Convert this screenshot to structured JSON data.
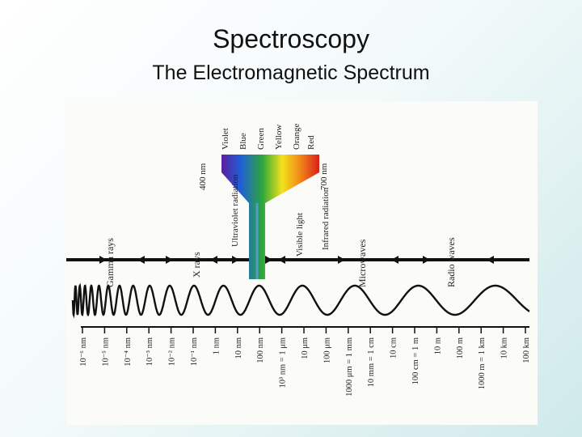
{
  "slide": {
    "title": "Spectroscopy",
    "subtitle": "The Electromagnetic Spectrum"
  },
  "diagram": {
    "region_labels": [
      "Gamma rays",
      "X rays",
      "Ultraviolet radiation",
      "Visible light",
      "Infrared radiation",
      "Microwaves",
      "Radio waves"
    ],
    "visible_band": {
      "start_label": "400 nm",
      "end_label": "700 nm",
      "colors": [
        "Violet",
        "Blue",
        "Green",
        "Yellow",
        "Orange",
        "Red"
      ]
    },
    "scale_labels": [
      "10⁻⁶ nm",
      "10⁻⁵ nm",
      "10⁻⁴ nm",
      "10⁻³ nm",
      "10⁻² nm",
      "10⁻¹ nm",
      "1 nm",
      "10 nm",
      "100 nm",
      "10³ nm = 1 μm",
      "10 μm",
      "100 μm",
      "1000 μm = 1 mm",
      "10 mm = 1 cm",
      "10 cm",
      "100 cm = 1 m",
      "10 m",
      "100 m",
      "1000 m = 1 km",
      "10 km",
      "100 km"
    ],
    "colors": {
      "violet": "#5b1e9e",
      "blue": "#1f5fd6",
      "green": "#2ea83a",
      "yellow": "#f3e21c",
      "orange": "#f28a1a",
      "red": "#d91f1a"
    }
  }
}
